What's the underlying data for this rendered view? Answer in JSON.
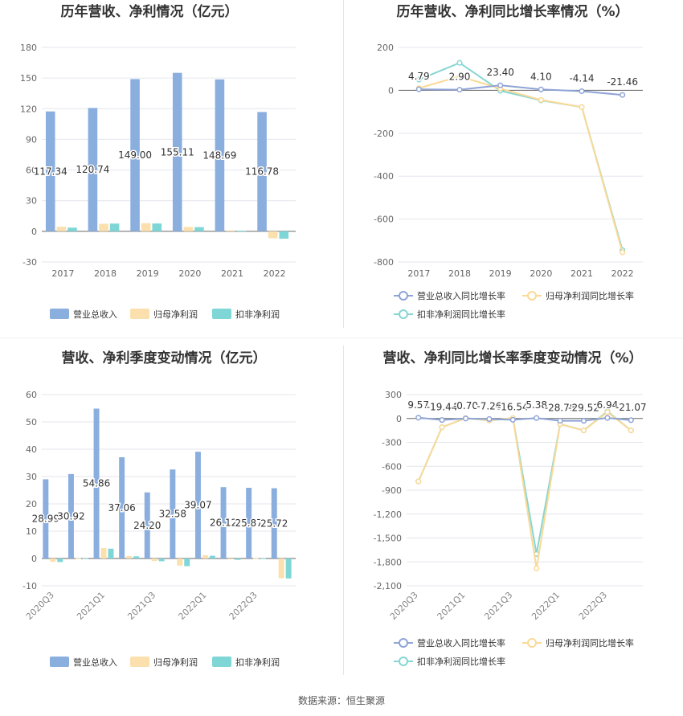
{
  "colors": {
    "revenue": "#8aaede",
    "parent_profit": "#fbe0ae",
    "deducted_profit": "#7fd6d6",
    "revenue_line": "#8ea4d6",
    "parent_line": "#fad996",
    "deducted_line": "#86d6d2"
  },
  "source_text": "数据来源：恒生聚源",
  "chart_data": [
    {
      "type": "bar",
      "title": "历年营收、净利情况（亿元）",
      "categories": [
        "2017",
        "2018",
        "2019",
        "2020",
        "2021",
        "2022"
      ],
      "ylim": [
        -30,
        180
      ],
      "yticks": [
        -30,
        0,
        30,
        60,
        90,
        120,
        150,
        180
      ],
      "series": [
        {
          "name": "营业总收入",
          "values": [
            117.34,
            120.74,
            149.0,
            155.11,
            148.69,
            116.78
          ],
          "labels": [
            "117.34",
            "120.74",
            "149.00",
            "155.11",
            "148.69",
            "116.78"
          ]
        },
        {
          "name": "归母净利润",
          "values": [
            4.5,
            7.4,
            8.0,
            4.3,
            0.8,
            -6.8
          ]
        },
        {
          "name": "扣非净利润",
          "values": [
            3.6,
            7.6,
            7.7,
            4.1,
            0.6,
            -7.2
          ]
        }
      ],
      "legend": "bottom"
    },
    {
      "type": "line",
      "title": "历年营收、净利同比增长率情况（%）",
      "categories": [
        "2017",
        "2018",
        "2019",
        "2020",
        "2021",
        "2022"
      ],
      "ylim": [
        -800,
        200
      ],
      "yticks": [
        -800,
        -600,
        -400,
        -200,
        0,
        200
      ],
      "series": [
        {
          "name": "营业总收入同比增长率",
          "values": [
            4.79,
            2.9,
            23.4,
            4.1,
            -4.14,
            -21.46
          ],
          "labels": [
            "4.79",
            "2.90",
            "23.40",
            "4.10",
            "-4.14",
            "-21.46"
          ]
        },
        {
          "name": "归母净利润同比增长率",
          "values": [
            10,
            65,
            8,
            -45,
            -78,
            -755
          ]
        },
        {
          "name": "扣非净利润同比增长率",
          "values": [
            50,
            128,
            -2,
            -47,
            -78,
            -745
          ]
        }
      ],
      "legend": "bottom"
    },
    {
      "type": "bar",
      "title": "营收、净利季度变动情况（亿元）",
      "categories": [
        "2020Q3",
        "2020Q4",
        "2021Q1",
        "2021Q2",
        "2021Q3",
        "2021Q4",
        "2022Q1",
        "2022Q2",
        "2022Q3",
        "2022Q4"
      ],
      "tick_labels": [
        "2020Q3",
        "",
        "2021Q1",
        "",
        "2021Q3",
        "",
        "2022Q1",
        "",
        "2022Q3",
        ""
      ],
      "ylim": [
        -10,
        60
      ],
      "yticks": [
        -10,
        0,
        10,
        20,
        30,
        40,
        50,
        60
      ],
      "series": [
        {
          "name": "营业总收入",
          "values": [
            28.99,
            30.92,
            54.86,
            37.06,
            24.2,
            32.58,
            39.07,
            26.12,
            25.87,
            25.72
          ],
          "labels": [
            "28.99",
            "30.92",
            "54.86",
            "37.06",
            "24.20",
            "32.58",
            "39.07",
            "26.12",
            "25.87",
            "25.72"
          ]
        },
        {
          "name": "归母净利润",
          "values": [
            -1.2,
            0.1,
            3.8,
            0.9,
            -0.9,
            -2.6,
            1.2,
            -0.3,
            0.1,
            -7.2
          ]
        },
        {
          "name": "扣非净利润",
          "values": [
            -1.3,
            0.1,
            3.6,
            0.8,
            -1.0,
            -2.8,
            1.0,
            -0.5,
            0.1,
            -7.3
          ]
        }
      ],
      "legend": "bottom"
    },
    {
      "type": "line",
      "title": "营收、净利同比增长率季度变动情况（%）",
      "categories": [
        "2020Q3",
        "2020Q4",
        "2021Q1",
        "2021Q2",
        "2021Q3",
        "2021Q4",
        "2022Q1",
        "2022Q2",
        "2022Q3",
        "2022Q4"
      ],
      "tick_labels": [
        "2020Q3",
        "",
        "2021Q1",
        "",
        "2021Q3",
        "",
        "2022Q1",
        "",
        "2022Q3",
        ""
      ],
      "ylim": [
        -2100,
        300
      ],
      "yticks": [
        -2100,
        -1800,
        -1500,
        -1200,
        -900,
        -600,
        -300,
        0,
        300
      ],
      "series": [
        {
          "name": "营业总收入同比增长率",
          "values": [
            9.57,
            -19.44,
            -0.7,
            -7.26,
            -16.54,
            5.38,
            -28.78,
            -29.52,
            6.94,
            -21.07
          ],
          "labels": [
            "9.57",
            "-19.44",
            "-0.70",
            "-7.26",
            "-16.54",
            "5.38",
            "-28.78",
            "-29.52",
            "6.94",
            "-21.07"
          ]
        },
        {
          "name": "归母净利润同比增长率",
          "values": [
            -790,
            -110,
            5,
            -25,
            5,
            -1880,
            -70,
            -150,
            80,
            -150
          ]
        },
        {
          "name": "扣非净利润同比增长率",
          "values": [
            -790,
            -110,
            5,
            -25,
            5,
            -1700,
            -70,
            -150,
            90,
            -150
          ]
        }
      ],
      "legend": "bottom"
    }
  ]
}
